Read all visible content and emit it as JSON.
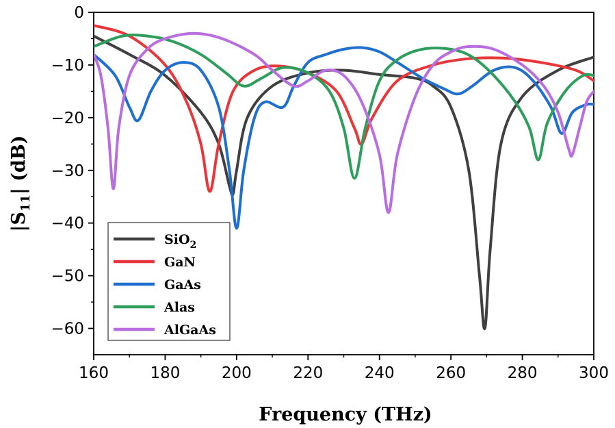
{
  "chart_data": {
    "type": "line",
    "xlabel": "Frequency (THz)",
    "ylabel_parts": [
      "|S",
      "11",
      "| (dB)"
    ],
    "xlim": [
      160,
      300
    ],
    "ylim": [
      -65,
      0
    ],
    "xticks": [
      160,
      180,
      200,
      220,
      240,
      260,
      280,
      300
    ],
    "yticks": [
      0,
      -10,
      -20,
      -30,
      -40,
      -50,
      -60
    ],
    "xtick_labels": [
      "160",
      "180",
      "200",
      "220",
      "240",
      "260",
      "280",
      "300"
    ],
    "ytick_labels": [
      "0",
      "−10",
      "−20",
      "−30",
      "−40",
      "−50",
      "−60"
    ],
    "grid": false,
    "legend_position": "bottom-left",
    "series": [
      {
        "name": "SiO",
        "name_sub": "2",
        "color": "#404040",
        "points": [
          [
            160,
            -4.5
          ],
          [
            170,
            -8
          ],
          [
            180,
            -12
          ],
          [
            190,
            -19
          ],
          [
            195,
            -25
          ],
          [
            198,
            -33
          ],
          [
            199,
            -34.5
          ],
          [
            200,
            -30
          ],
          [
            203,
            -20
          ],
          [
            210,
            -14
          ],
          [
            220,
            -11.5
          ],
          [
            230,
            -11
          ],
          [
            240,
            -11.8
          ],
          [
            250,
            -12.5
          ],
          [
            255,
            -14
          ],
          [
            260,
            -18
          ],
          [
            265,
            -30
          ],
          [
            268,
            -50
          ],
          [
            269.5,
            -60
          ],
          [
            271,
            -45
          ],
          [
            274,
            -25
          ],
          [
            280,
            -16
          ],
          [
            290,
            -11
          ],
          [
            300,
            -8.5
          ]
        ]
      },
      {
        "name": "GaN",
        "name_sub": "",
        "color": "#e8373a",
        "points": [
          [
            160,
            -2.5
          ],
          [
            170,
            -4.5
          ],
          [
            180,
            -10
          ],
          [
            186,
            -17
          ],
          [
            190,
            -25
          ],
          [
            192.5,
            -34
          ],
          [
            195,
            -25
          ],
          [
            199,
            -15
          ],
          [
            205,
            -11
          ],
          [
            212,
            -10.2
          ],
          [
            220,
            -11.5
          ],
          [
            228,
            -15
          ],
          [
            233,
            -22
          ],
          [
            235,
            -25
          ],
          [
            238,
            -20
          ],
          [
            245,
            -13
          ],
          [
            255,
            -10
          ],
          [
            265,
            -8.8
          ],
          [
            275,
            -8.7
          ],
          [
            285,
            -9.5
          ],
          [
            295,
            -11
          ],
          [
            300,
            -13
          ]
        ]
      },
      {
        "name": "GaAs",
        "name_sub": "",
        "color": "#1f6fd0",
        "points": [
          [
            160,
            -8
          ],
          [
            166,
            -12
          ],
          [
            170,
            -18
          ],
          [
            172.5,
            -20.5
          ],
          [
            176,
            -15
          ],
          [
            180,
            -11
          ],
          [
            185,
            -9.5
          ],
          [
            190,
            -11
          ],
          [
            195,
            -18
          ],
          [
            198,
            -30
          ],
          [
            200,
            -41
          ],
          [
            202,
            -30
          ],
          [
            205,
            -20
          ],
          [
            208,
            -17
          ],
          [
            213,
            -18
          ],
          [
            216,
            -14
          ],
          [
            220,
            -9.5
          ],
          [
            225,
            -8
          ],
          [
            230,
            -7
          ],
          [
            235,
            -6.7
          ],
          [
            240,
            -7.5
          ],
          [
            245,
            -9.5
          ],
          [
            252,
            -12.5
          ],
          [
            258,
            -14.5
          ],
          [
            262,
            -15.5
          ],
          [
            266,
            -14
          ],
          [
            272,
            -11
          ],
          [
            278,
            -10.5
          ],
          [
            283,
            -13
          ],
          [
            288,
            -18
          ],
          [
            291,
            -23
          ],
          [
            294,
            -19
          ],
          [
            298,
            -17.5
          ],
          [
            300,
            -17.5
          ]
        ]
      },
      {
        "name": "Alas",
        "name_sub": "",
        "color": "#2e9e5c",
        "points": [
          [
            160,
            -6.5
          ],
          [
            168,
            -4.5
          ],
          [
            175,
            -4.5
          ],
          [
            182,
            -5.5
          ],
          [
            190,
            -8
          ],
          [
            197,
            -11.5
          ],
          [
            202,
            -14
          ],
          [
            207,
            -12.5
          ],
          [
            213,
            -10.5
          ],
          [
            220,
            -11.5
          ],
          [
            226,
            -15
          ],
          [
            230,
            -22
          ],
          [
            233,
            -31.5
          ],
          [
            236,
            -22
          ],
          [
            240,
            -13
          ],
          [
            245,
            -9
          ],
          [
            252,
            -7
          ],
          [
            260,
            -7
          ],
          [
            266,
            -8.5
          ],
          [
            272,
            -12
          ],
          [
            278,
            -17
          ],
          [
            282,
            -22
          ],
          [
            284.5,
            -28
          ],
          [
            287,
            -21
          ],
          [
            292,
            -15
          ],
          [
            297,
            -12
          ],
          [
            300,
            -12
          ]
        ]
      },
      {
        "name": "AlGaAs",
        "name_sub": "",
        "color": "#b96ee0",
        "points": [
          [
            160,
            -8
          ],
          [
            162,
            -12
          ],
          [
            164,
            -22
          ],
          [
            165.5,
            -33.5
          ],
          [
            167,
            -22
          ],
          [
            170,
            -12
          ],
          [
            175,
            -7
          ],
          [
            180,
            -5
          ],
          [
            188,
            -4
          ],
          [
            196,
            -5
          ],
          [
            205,
            -8
          ],
          [
            210,
            -11
          ],
          [
            216,
            -14
          ],
          [
            220,
            -13
          ],
          [
            225,
            -11
          ],
          [
            230,
            -12
          ],
          [
            235,
            -17
          ],
          [
            240,
            -27
          ],
          [
            242.5,
            -38
          ],
          [
            245,
            -27
          ],
          [
            250,
            -16
          ],
          [
            255,
            -10
          ],
          [
            260,
            -7.5
          ],
          [
            265,
            -6.5
          ],
          [
            272,
            -7
          ],
          [
            280,
            -10
          ],
          [
            286,
            -14
          ],
          [
            290,
            -19
          ],
          [
            293,
            -26
          ],
          [
            294,
            -27
          ],
          [
            296,
            -22
          ],
          [
            298,
            -17
          ],
          [
            300,
            -15
          ]
        ]
      }
    ]
  }
}
